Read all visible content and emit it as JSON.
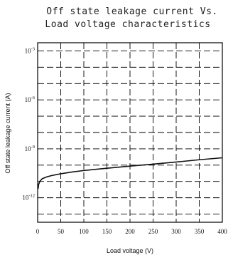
{
  "chart_data": {
    "type": "line",
    "title_lines": [
      "Off state leakage current Vs.",
      "Load voltage characteristics"
    ],
    "xlabel": "Load voltage (V)",
    "ylabel": "Off state leakage current (A)",
    "x_scale": "linear",
    "y_scale": "log",
    "xlim": [
      0,
      400
    ],
    "ylim_exponent": [
      -13.5,
      -2.5
    ],
    "x_ticks": [
      0,
      50,
      100,
      150,
      200,
      250,
      300,
      350,
      400
    ],
    "x_tick_labels": [
      "0",
      "50",
      "100",
      "150",
      "200",
      "250",
      "300",
      "350",
      "400"
    ],
    "y_ticks_exponent": [
      -3,
      -6,
      -9,
      -12
    ],
    "y_tick_labels": [
      {
        "base": "10",
        "exp": "-3"
      },
      {
        "base": "10",
        "exp": "-6"
      },
      {
        "base": "10",
        "exp": "-9"
      },
      {
        "base": "10",
        "exp": "-12"
      }
    ],
    "grid": true,
    "grid_style": "dashed",
    "series": [
      {
        "x": [
          1,
          2,
          5,
          10,
          20,
          30,
          50,
          75,
          100,
          150,
          200,
          250,
          300,
          350,
          400
        ],
        "y_exponent": [
          -11.45,
          -11.2,
          -10.98,
          -10.83,
          -10.72,
          -10.64,
          -10.53,
          -10.42,
          -10.33,
          -10.19,
          -10.06,
          -9.94,
          -9.81,
          -9.67,
          -9.55
        ],
        "color": "#111111"
      }
    ]
  }
}
